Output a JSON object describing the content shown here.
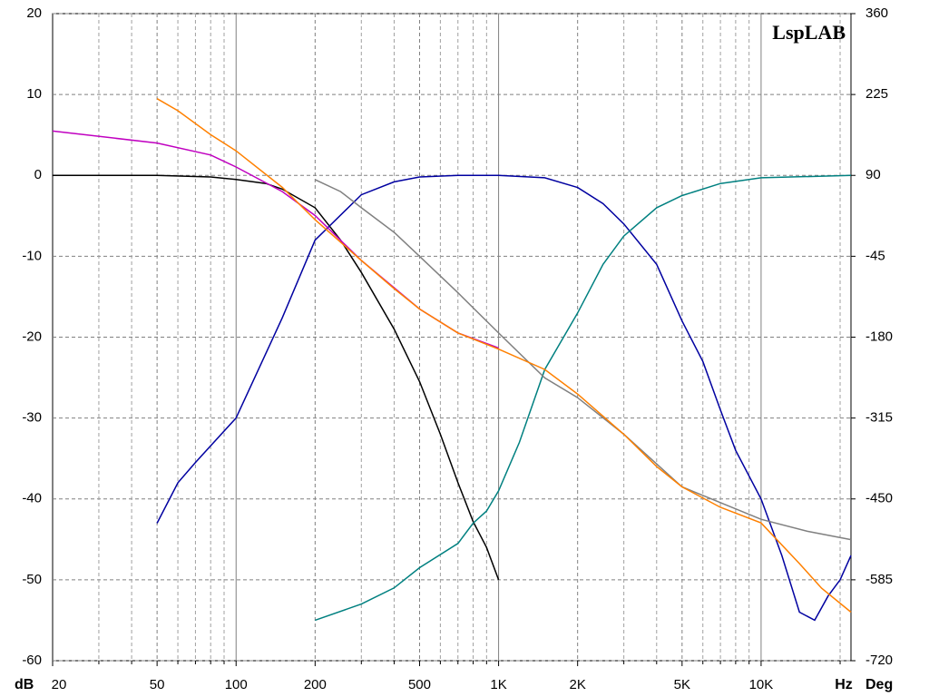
{
  "chart_data": {
    "type": "line",
    "title": "LspLAB",
    "xlabel": "Hz",
    "ylabel": "dB",
    "y2label": "Deg",
    "ylabel_color": "#0000a0",
    "y2label_color": "#ff8000",
    "xscale": "log",
    "grid": true,
    "xlim": [
      20,
      22000
    ],
    "xticks": [
      20,
      50,
      100,
      200,
      500,
      {
        "value": 1000,
        "label": "1K"
      },
      {
        "value": 2000,
        "label": "2K"
      },
      {
        "value": 5000,
        "label": "5K"
      },
      {
        "value": 10000,
        "label": "10K"
      }
    ],
    "xminor_ticks": [
      30,
      40,
      60,
      70,
      80,
      90,
      300,
      400,
      600,
      700,
      800,
      900,
      3000,
      4000,
      6000,
      7000,
      8000,
      9000,
      20000
    ],
    "ylim": [
      -60,
      20
    ],
    "yticks": [
      20,
      10,
      0,
      -10,
      -20,
      -30,
      -40,
      -50,
      -60
    ],
    "y2lim": [
      -720,
      360
    ],
    "y2ticks": [
      360,
      225,
      90,
      -45,
      -180,
      -315,
      -450,
      -585,
      -720
    ],
    "series": [
      {
        "color": "#000000",
        "x": [
          20,
          50,
          80,
          100,
          130,
          150,
          200,
          250,
          300,
          400,
          500,
          600,
          700,
          800,
          900,
          1000
        ],
        "values": [
          0,
          0,
          -0.2,
          -0.5,
          -1,
          -1.7,
          -4,
          -8,
          -12,
          -19,
          -25.5,
          -32,
          -38,
          -42.8,
          -46,
          -50
        ]
      },
      {
        "color": "#0000a0",
        "x": [
          50,
          60,
          70,
          100,
          150,
          200,
          300,
          400,
          500,
          700,
          1000,
          1500,
          2000,
          2500,
          3000,
          4000,
          5000,
          6000,
          7000,
          8000,
          10000,
          12000,
          14000,
          16000,
          18000,
          20000,
          22000
        ],
        "values": [
          -43,
          -38,
          -35.5,
          -30,
          -17.6,
          -8,
          -2.4,
          -0.8,
          -0.2,
          0,
          0,
          -0.3,
          -1.5,
          -3.5,
          -6,
          -11,
          -18,
          -23,
          -29,
          -34,
          -40,
          -47,
          -54,
          -55,
          -52,
          -50,
          -47
        ]
      },
      {
        "color": "#008080",
        "x": [
          200,
          300,
          400,
          500,
          700,
          800,
          900,
          1000,
          1200,
          1500,
          2000,
          2500,
          3000,
          4000,
          5000,
          7000,
          10000,
          22000
        ],
        "values": [
          -55,
          -53,
          -51,
          -48.5,
          -45.5,
          -43,
          -41.5,
          -39,
          -33,
          -24,
          -17,
          -11,
          -7.5,
          -4,
          -2.5,
          -1,
          -0.3,
          0
        ]
      },
      {
        "color": "#808080",
        "axis": "y2",
        "x": [
          200,
          250,
          300,
          400,
          500,
          700,
          1000,
          1500,
          2000,
          3000,
          5000,
          10000,
          15000,
          22000
        ],
        "values": [
          83,
          63,
          36,
          -5,
          -45,
          -106,
          -173,
          -248,
          -281,
          -342,
          -430,
          -484,
          -504,
          -518
        ]
      },
      {
        "color": "#c000c0",
        "axis": "y2",
        "x": [
          20,
          50,
          80,
          100,
          150,
          200,
          300,
          500,
          700,
          1000
        ],
        "values": [
          164,
          144,
          124,
          104,
          63,
          23,
          -52,
          -133,
          -173,
          -198
        ]
      },
      {
        "color": "#ff8000",
        "axis": "y2",
        "x": [
          50,
          60,
          80,
          100,
          150,
          200,
          300,
          400,
          500,
          700,
          1000,
          1500,
          2000,
          3000,
          4000,
          5000,
          7000,
          10000,
          14000,
          17000,
          22000
        ],
        "values": [
          218,
          198,
          158,
          131,
          70,
          16,
          -52,
          -99,
          -133,
          -173,
          -200,
          -234,
          -275,
          -342,
          -396,
          -430,
          -464,
          -490,
          -558,
          -599,
          -639
        ]
      }
    ]
  }
}
